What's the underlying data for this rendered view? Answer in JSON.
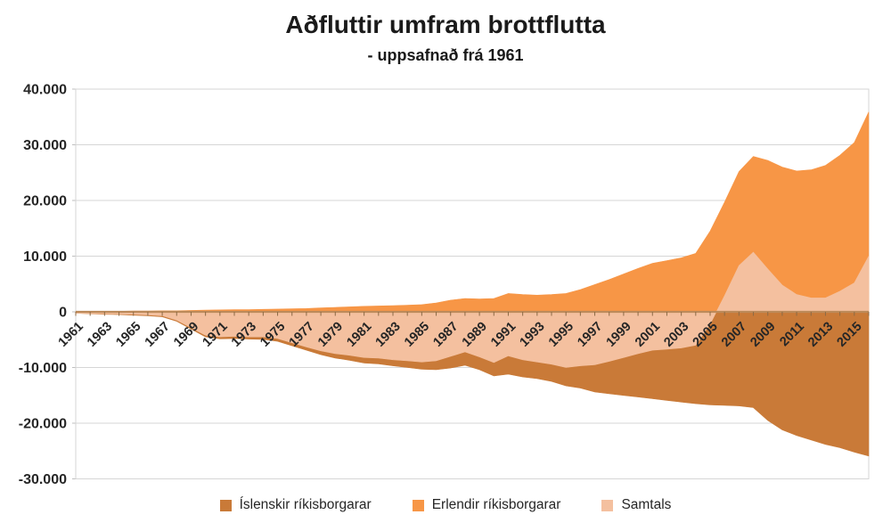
{
  "title": "Aðfluttir umfram brottflutta",
  "subtitle": "- uppsafnað frá 1961",
  "colors": {
    "islenskir": "#C97A38",
    "erlendir": "#F79646",
    "samtals": "#F4C09F",
    "gridline": "#D6D6D6",
    "axis_line": "#BC8A5A",
    "tick_text": "#262626"
  },
  "legend": [
    {
      "label": "Íslenskir ríkisborgarar",
      "color": "#C97A38"
    },
    {
      "label": "Erlendir ríkisborgarar",
      "color": "#F79646"
    },
    {
      "label": "Samtals",
      "color": "#F4C09F"
    }
  ],
  "chart_data": {
    "type": "area",
    "title": "Aðfluttir umfram brottflutta",
    "subtitle": "- uppsafnað frá 1961",
    "xlabel": "",
    "ylabel": "",
    "ylim": [
      -30000,
      40000
    ],
    "ytick_step": 10000,
    "ytick_labels": [
      "40.000",
      "30.000",
      "20.000",
      "10.000",
      "0",
      "-10.000",
      "-20.000",
      "-30.000"
    ],
    "xtick_labels": [
      "1961",
      "1963",
      "1965",
      "1967",
      "1969",
      "1971",
      "1973",
      "1975",
      "1977",
      "1979",
      "1981",
      "1983",
      "1985",
      "1987",
      "1989",
      "1991",
      "1993",
      "1995",
      "1997",
      "1999",
      "2001",
      "2003",
      "2005",
      "2007",
      "2009",
      "2011",
      "2013",
      "2015"
    ],
    "x": [
      1961,
      1962,
      1963,
      1964,
      1965,
      1966,
      1967,
      1968,
      1969,
      1970,
      1971,
      1972,
      1973,
      1974,
      1975,
      1976,
      1977,
      1978,
      1979,
      1980,
      1981,
      1982,
      1983,
      1984,
      1985,
      1986,
      1987,
      1988,
      1989,
      1990,
      1991,
      1992,
      1993,
      1994,
      1995,
      1996,
      1997,
      1998,
      1999,
      2000,
      2001,
      2002,
      2003,
      2004,
      2005,
      2006,
      2007,
      2008,
      2009,
      2010,
      2011,
      2012,
      2013,
      2014,
      2015,
      2016
    ],
    "series": [
      {
        "name": "Íslenskir ríkisborgarar",
        "color": "#C97A38",
        "values": [
          -250,
          -350,
          -450,
          -500,
          -600,
          -700,
          -900,
          -1700,
          -3100,
          -4500,
          -4850,
          -4800,
          -4900,
          -4950,
          -5300,
          -6100,
          -6900,
          -7700,
          -8300,
          -8700,
          -9200,
          -9350,
          -9700,
          -10000,
          -10300,
          -10400,
          -10100,
          -9600,
          -10400,
          -11500,
          -11200,
          -11700,
          -12000,
          -12500,
          -13300,
          -13700,
          -14400,
          -14700,
          -15000,
          -15300,
          -15600,
          -15900,
          -16200,
          -16500,
          -16700,
          -16800,
          -16900,
          -17200,
          -19500,
          -21200,
          -22200,
          -23000,
          -23800,
          -24400,
          -25200,
          -25900
        ]
      },
      {
        "name": "Erlendir ríkisborgarar",
        "color": "#F79646",
        "values": [
          0,
          50,
          100,
          100,
          150,
          150,
          200,
          200,
          250,
          300,
          350,
          400,
          400,
          450,
          500,
          550,
          600,
          700,
          800,
          900,
          1000,
          1050,
          1100,
          1200,
          1300,
          1600,
          2100,
          2400,
          2300,
          2400,
          3300,
          3100,
          3000,
          3100,
          3300,
          4000,
          4900,
          5800,
          6800,
          7800,
          8700,
          9200,
          9700,
          10500,
          14500,
          19700,
          25200,
          27900,
          27200,
          26000,
          25300,
          25500,
          26300,
          28100,
          30400,
          35900
        ]
      },
      {
        "name": "Samtals",
        "color": "#F4C09F",
        "values": [
          -250,
          -300,
          -350,
          -400,
          -450,
          -550,
          -700,
          -1500,
          -2850,
          -4200,
          -4500,
          -4400,
          -4500,
          -4500,
          -4800,
          -5550,
          -6300,
          -7000,
          -7500,
          -7800,
          -8200,
          -8300,
          -8600,
          -8800,
          -9000,
          -8800,
          -8000,
          -7200,
          -8100,
          -9100,
          -7900,
          -8600,
          -9000,
          -9400,
          -10000,
          -9700,
          -9500,
          -8900,
          -8200,
          -7500,
          -6900,
          -6700,
          -6500,
          -6000,
          -2200,
          2900,
          8300,
          10700,
          7700,
          4800,
          3100,
          2500,
          2500,
          3700,
          5200,
          10000
        ]
      }
    ],
    "legend_position": "bottom",
    "grid": true
  }
}
